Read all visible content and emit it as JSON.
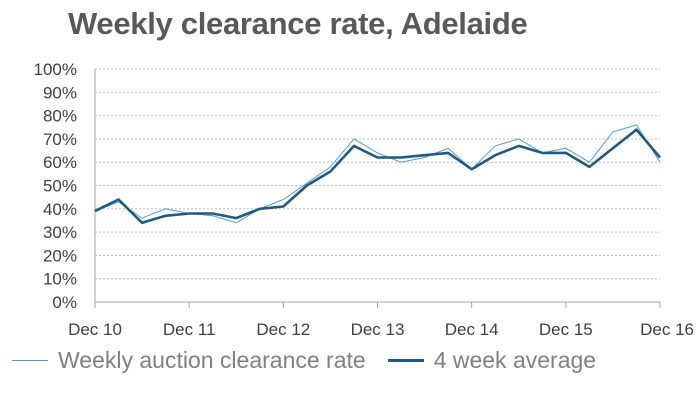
{
  "chart_data": {
    "type": "line",
    "title": "Weekly clearance rate, Adelaide",
    "xlabel": "",
    "ylabel": "",
    "x_ticks": [
      "Dec 10",
      "Dec 11",
      "Dec 12",
      "Dec 13",
      "Dec 14",
      "Dec 15",
      "Dec 16"
    ],
    "y_ticks": [
      "0%",
      "10%",
      "20%",
      "30%",
      "40%",
      "50%",
      "60%",
      "70%",
      "80%",
      "90%",
      "100%"
    ],
    "xlim": [
      "Dec 10",
      "Dec 16"
    ],
    "ylim": [
      0,
      100
    ],
    "grid": "horizontal dotted",
    "legend_position": "bottom",
    "colors": {
      "weekly": "#4f9fd0",
      "average": "#1f5a84",
      "grid": "#bfbfbf",
      "axis": "#a6a6a6"
    },
    "x": [
      "Dec 10",
      "Mar 11",
      "Jun 11",
      "Sep 11",
      "Dec 11",
      "Mar 12",
      "Jun 12",
      "Sep 12",
      "Dec 12",
      "Mar 13",
      "Jun 13",
      "Sep 13",
      "Dec 13",
      "Mar 14",
      "Jun 14",
      "Sep 14",
      "Dec 14",
      "Mar 15",
      "Jun 15",
      "Sep 15",
      "Dec 15",
      "Mar 16",
      "Jun 16",
      "Sep 16",
      "Dec 16"
    ],
    "series": [
      {
        "name": "Weekly auction clearance rate",
        "values": [
          39,
          43,
          36,
          40,
          38,
          37,
          34,
          40,
          44,
          51,
          58,
          70,
          64,
          60,
          62,
          66,
          57,
          67,
          70,
          64,
          66,
          60,
          73,
          76,
          60
        ]
      },
      {
        "name": "4 week average",
        "values": [
          39,
          44,
          34,
          37,
          38,
          38,
          36,
          40,
          41,
          50,
          56,
          67,
          62,
          62,
          63,
          64,
          57,
          63,
          67,
          64,
          64,
          58,
          66,
          74,
          62
        ]
      }
    ]
  }
}
